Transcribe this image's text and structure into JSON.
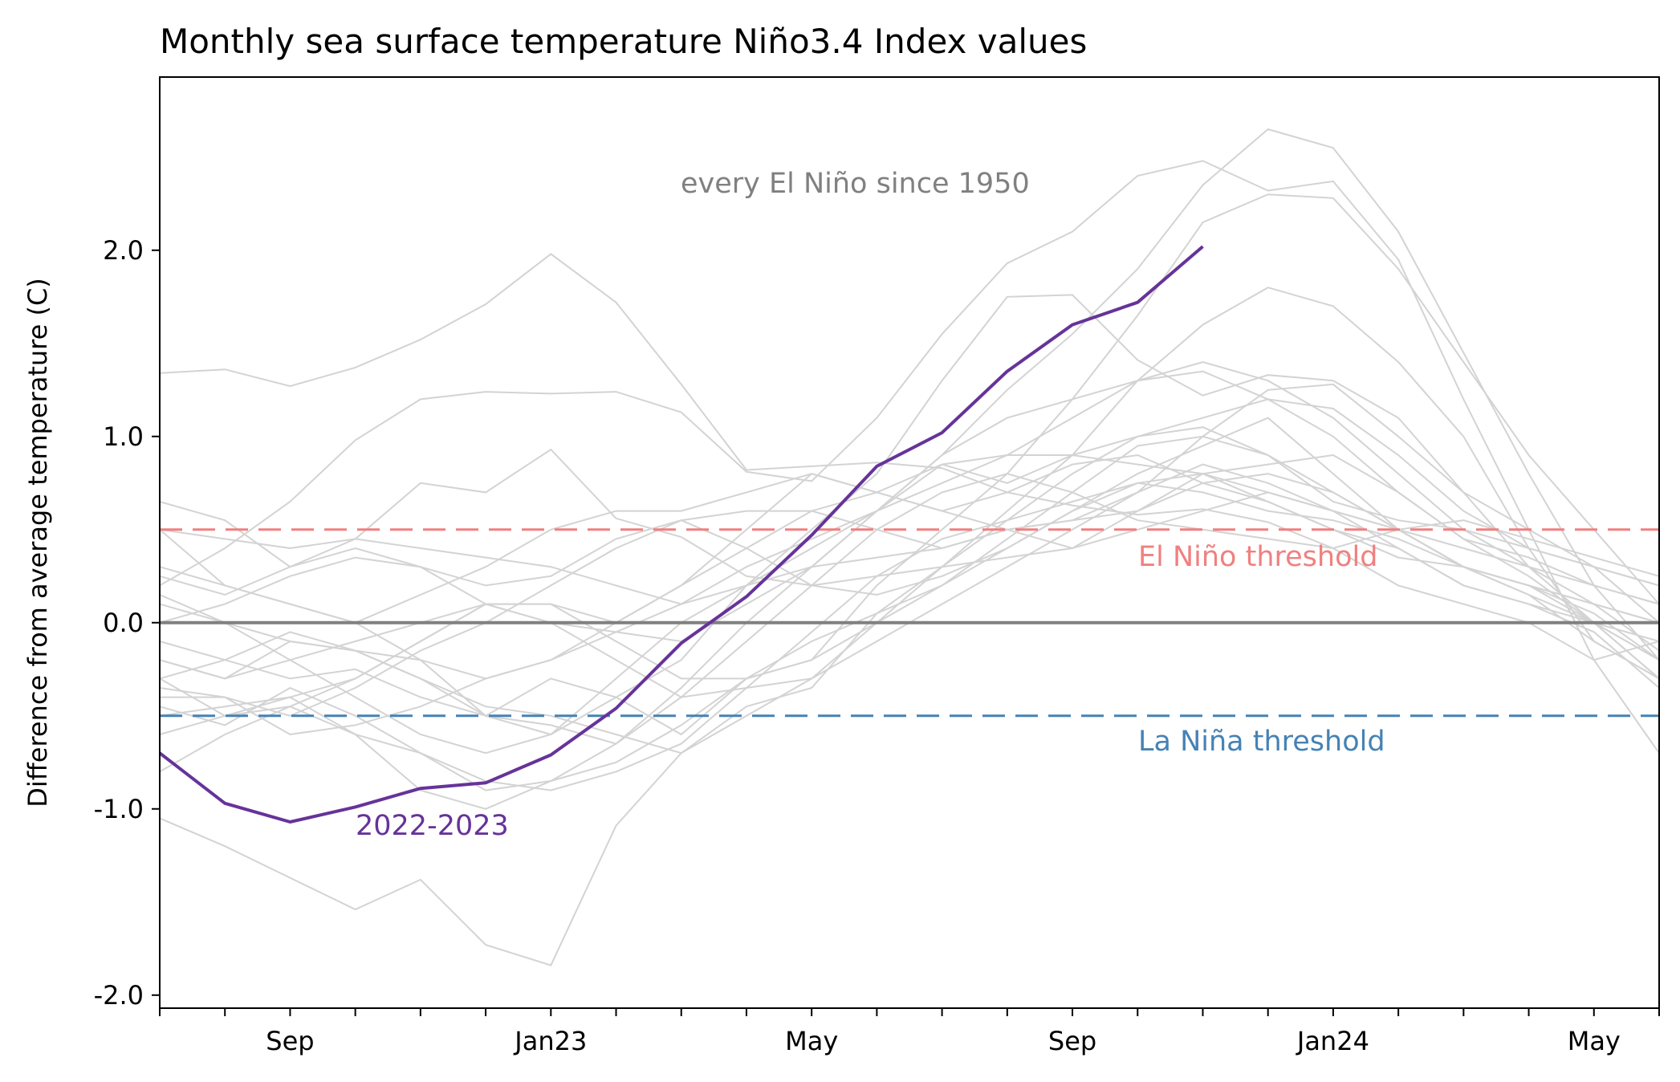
{
  "chart_data": {
    "type": "line",
    "title": "Monthly sea surface temperature Niño3.4 Index values",
    "xlabel": "",
    "ylabel": "Difference from average temperature (C)",
    "x": [
      "Jul22",
      "Aug22",
      "Sep22",
      "Oct22",
      "Nov22",
      "Dec22",
      "Jan23",
      "Feb23",
      "Mar23",
      "Apr23",
      "May23",
      "Jun23",
      "Jul23",
      "Aug23",
      "Sep23",
      "Oct23",
      "Nov23",
      "Dec23",
      "Jan24",
      "Feb24",
      "Mar24",
      "Apr24",
      "May24",
      "Jun24"
    ],
    "x_tick_labels": [
      {
        "label": "Sep",
        "index": 2
      },
      {
        "label": "Jan23",
        "index": 6
      },
      {
        "label": "May",
        "index": 10
      },
      {
        "label": "Sep",
        "index": 14
      },
      {
        "label": "Jan24",
        "index": 18
      },
      {
        "label": "May",
        "index": 22
      }
    ],
    "xlim_index": [
      0,
      23
    ],
    "ylim": [
      -2.07,
      2.93
    ],
    "y_ticks": [
      {
        "value": 2.0,
        "label": "2.0"
      },
      {
        "value": 1.0,
        "label": "1.0"
      },
      {
        "value": 0.0,
        "label": "0.0"
      },
      {
        "value": -1.0,
        "label": "-1.0"
      },
      {
        "value": -2.0,
        "label": "-2.0"
      }
    ],
    "grid": false,
    "highlight_series": {
      "label": "2022-2023",
      "color": "#663399",
      "values": [
        -0.7,
        -0.97,
        -1.07,
        -0.99,
        -0.89,
        -0.86,
        -0.71,
        -0.46,
        -0.11,
        0.14,
        0.47,
        0.84,
        1.02,
        1.35,
        1.6,
        1.72,
        2.02
      ]
    },
    "background_series_label": "every El Niño since 1950",
    "background_color": "#d3d3d3",
    "background_series": [
      {
        "values": [
          1.34,
          1.36,
          1.27,
          1.37,
          1.52,
          1.71,
          1.98,
          1.72,
          1.28,
          0.82,
          0.84,
          0.86,
          0.83,
          0.7,
          0.63,
          0.58,
          0.61,
          0.54,
          0.4,
          0.2,
          0.1,
          0.0,
          -0.2,
          -0.1
        ]
      },
      {
        "values": [
          -1.05,
          -1.2,
          -1.37,
          -1.54,
          -1.38,
          -1.73,
          -1.84,
          -1.09,
          -0.7,
          -0.45,
          -0.35,
          0.05,
          0.3,
          0.6,
          0.9,
          1.3,
          1.6,
          1.8,
          1.7,
          1.4,
          1.0,
          0.4,
          -0.1,
          -0.3
        ]
      },
      {
        "values": [
          0.2,
          0.4,
          0.65,
          0.98,
          1.2,
          1.24,
          1.23,
          1.24,
          1.13,
          0.81,
          0.76,
          1.1,
          1.55,
          1.93,
          2.1,
          2.4,
          2.48,
          2.32,
          2.37,
          1.95,
          1.2,
          0.5,
          -0.2,
          -0.7
        ]
      },
      {
        "values": [
          0.5,
          0.2,
          0.1,
          0.0,
          -0.2,
          -0.5,
          -0.6,
          -0.4,
          -0.2,
          0.2,
          0.5,
          0.8,
          1.3,
          1.75,
          1.76,
          1.41,
          1.22,
          1.33,
          1.3,
          1.1,
          0.7,
          0.3,
          0.0,
          -0.2
        ]
      },
      {
        "values": [
          -0.3,
          -0.5,
          -0.45,
          -0.6,
          -0.9,
          -1.0,
          -0.85,
          -0.65,
          -0.35,
          0.0,
          0.3,
          0.6,
          0.9,
          1.25,
          1.55,
          1.9,
          2.35,
          2.65,
          2.55,
          2.1,
          1.45,
          0.8,
          0.2,
          -0.2
        ]
      },
      {
        "values": [
          -0.6,
          -0.5,
          -0.4,
          -0.3,
          -0.1,
          0.1,
          0.1,
          -0.1,
          -0.3,
          -0.3,
          -0.2,
          0.2,
          0.5,
          0.8,
          1.2,
          1.65,
          2.15,
          2.3,
          2.28,
          1.9,
          1.4,
          0.9,
          0.5,
          0.1
        ]
      },
      {
        "values": [
          0.1,
          0.0,
          -0.1,
          -0.15,
          -0.2,
          -0.3,
          -0.2,
          0.0,
          0.2,
          0.4,
          0.6,
          0.5,
          0.4,
          0.5,
          0.55,
          0.7,
          1.0,
          1.25,
          1.28,
          1.0,
          0.7,
          0.5,
          0.3,
          0.2
        ]
      },
      {
        "values": [
          -0.2,
          -0.3,
          -0.2,
          -0.4,
          -0.6,
          -0.7,
          -0.6,
          -0.3,
          0.0,
          0.2,
          0.4,
          0.6,
          0.85,
          0.75,
          0.9,
          0.85,
          0.8,
          0.7,
          0.6,
          0.5,
          0.4,
          0.3,
          0.2,
          0.1
        ]
      },
      {
        "values": [
          -0.4,
          -0.4,
          -0.5,
          -0.35,
          -0.15,
          0.0,
          0.2,
          0.4,
          0.55,
          0.6,
          0.6,
          0.7,
          0.85,
          0.9,
          0.9,
          1.0,
          1.1,
          1.2,
          1.15,
          0.9,
          0.6,
          0.4,
          0.3,
          0.0
        ]
      },
      {
        "values": [
          0.25,
          0.15,
          0.3,
          0.4,
          0.3,
          0.1,
          0.0,
          -0.05,
          -0.1,
          0.1,
          0.3,
          0.6,
          0.9,
          1.1,
          1.2,
          1.3,
          1.35,
          1.2,
          1.0,
          0.7,
          0.45,
          0.35,
          0.2,
          0.1
        ]
      },
      {
        "values": [
          -0.8,
          -0.6,
          -0.45,
          -0.3,
          -0.1,
          0.1,
          0.1,
          0.0,
          0.2,
          0.5,
          0.8,
          0.7,
          0.6,
          0.5,
          0.4,
          0.5,
          0.6,
          0.7,
          0.6,
          0.5,
          0.3,
          0.2,
          0.0,
          -0.3
        ]
      },
      {
        "values": [
          0.5,
          0.45,
          0.4,
          0.45,
          0.4,
          0.35,
          0.3,
          0.2,
          0.1,
          0.2,
          0.3,
          0.35,
          0.4,
          0.5,
          0.55,
          0.6,
          0.75,
          0.8,
          0.7,
          0.5,
          0.3,
          0.15,
          0.0,
          -0.1
        ]
      },
      {
        "values": [
          -0.5,
          -0.45,
          -0.4,
          -0.6,
          -0.7,
          -0.9,
          -0.85,
          -0.75,
          -0.55,
          -0.3,
          -0.1,
          0.05,
          0.2,
          0.45,
          0.7,
          0.95,
          1.0,
          0.9,
          0.65,
          0.55,
          0.5,
          0.4,
          0.3,
          0.2
        ]
      },
      {
        "values": [
          0.65,
          0.55,
          0.3,
          0.45,
          0.75,
          0.7,
          0.93,
          0.56,
          0.46,
          0.25,
          0.2,
          0.25,
          0.3,
          0.35,
          0.4,
          0.6,
          0.8,
          0.65,
          0.5,
          0.4,
          0.2,
          0.1,
          0.0,
          -0.2
        ]
      },
      {
        "values": [
          -0.2,
          -0.3,
          -0.1,
          -0.15,
          -0.3,
          -0.5,
          -0.3,
          -0.4,
          -0.6,
          -0.3,
          -0.2,
          0.0,
          0.2,
          0.4,
          0.6,
          0.8,
          0.95,
          1.1,
          0.8,
          0.5,
          0.3,
          0.2,
          0.1,
          0.0
        ]
      },
      {
        "values": [
          0.3,
          0.2,
          0.1,
          0.0,
          0.15,
          0.3,
          0.5,
          0.6,
          0.6,
          0.7,
          0.8,
          0.7,
          0.6,
          0.7,
          0.85,
          0.9,
          0.75,
          0.65,
          0.5,
          0.35,
          0.3,
          0.15,
          -0.1,
          -0.3
        ]
      },
      {
        "values": [
          -0.1,
          -0.2,
          -0.3,
          -0.25,
          -0.4,
          -0.5,
          -0.55,
          -0.65,
          -0.4,
          -0.1,
          0.2,
          0.5,
          0.7,
          0.8,
          0.7,
          0.55,
          0.5,
          0.45,
          0.4,
          0.5,
          0.55,
          0.45,
          0.35,
          0.25
        ]
      },
      {
        "values": [
          0.15,
          0.0,
          -0.2,
          -0.1,
          0.0,
          0.1,
          0.0,
          -0.2,
          -0.4,
          -0.35,
          -0.3,
          -0.1,
          0.1,
          0.3,
          0.5,
          0.7,
          0.85,
          0.75,
          0.6,
          0.4,
          0.2,
          0.1,
          -0.05,
          -0.35
        ]
      },
      {
        "values": [
          -0.3,
          -0.2,
          -0.05,
          -0.15,
          -0.3,
          -0.45,
          -0.5,
          -0.6,
          -0.7,
          -0.5,
          -0.3,
          0.0,
          0.3,
          0.55,
          0.8,
          1.0,
          1.05,
          0.9,
          0.7,
          0.5,
          0.3,
          0.2,
          0.05,
          -0.2
        ]
      },
      {
        "values": [
          -0.45,
          -0.55,
          -0.35,
          -0.5,
          -0.7,
          -0.85,
          -0.9,
          -0.8,
          -0.65,
          -0.35,
          -0.05,
          0.25,
          0.45,
          0.55,
          0.65,
          0.75,
          0.8,
          0.85,
          0.9,
          0.7,
          0.45,
          0.25,
          0.0,
          -0.3
        ]
      },
      {
        "values": [
          0.0,
          0.1,
          0.25,
          0.35,
          0.3,
          0.2,
          0.25,
          0.45,
          0.55,
          0.4,
          0.2,
          0.15,
          0.25,
          0.4,
          0.6,
          0.75,
          0.7,
          0.6,
          0.55,
          0.45,
          0.3,
          0.2,
          0.1,
          0.0
        ]
      },
      {
        "values": [
          -0.35,
          -0.4,
          -0.6,
          -0.55,
          -0.45,
          -0.3,
          -0.2,
          -0.05,
          0.1,
          0.3,
          0.45,
          0.6,
          0.75,
          0.9,
          1.1,
          1.3,
          1.4,
          1.3,
          1.1,
          0.8,
          0.5,
          0.3,
          0.1,
          -0.15
        ]
      }
    ],
    "reference_lines": [
      {
        "label": "El Niño threshold",
        "value": 0.5,
        "color": "#f08080",
        "style": "dashed"
      },
      {
        "label": "La Niña threshold",
        "value": -0.5,
        "color": "#4682b4",
        "style": "dashed"
      },
      {
        "label": "",
        "value": 0.0,
        "color": "#808080",
        "style": "solid"
      }
    ]
  }
}
